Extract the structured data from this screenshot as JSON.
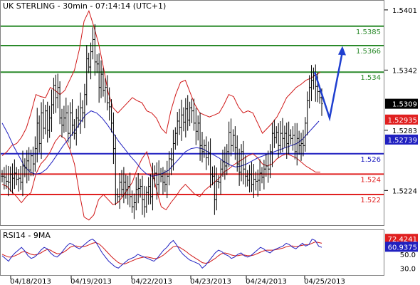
{
  "chart_data": {
    "type": "line",
    "title": "UK STERLING - 30min - 07:14:14 (UTC+1)",
    "price_axis": {
      "ylim": [
        1.519,
        1.541
      ],
      "ticks": [
        "1.5401",
        "1.5342",
        "1.5283",
        "1.5224"
      ]
    },
    "x_labels": [
      "04/18/2013",
      "04/19/2013",
      "04/22/2013",
      "04/23/2013",
      "04/24/2013",
      "04/25/2013"
    ],
    "levels": [
      {
        "label": "1.5385",
        "value": 1.5385,
        "color": "#2a8a2a"
      },
      {
        "label": "1.5366",
        "value": 1.5366,
        "color": "#2a8a2a"
      },
      {
        "label": "1.534",
        "value": 1.534,
        "color": "#2a8a2a"
      },
      {
        "label": "1.526",
        "value": 1.526,
        "color": "#2020c0"
      },
      {
        "label": "1.524",
        "value": 1.524,
        "color": "#e02020"
      },
      {
        "label": "1.522",
        "value": 1.522,
        "color": "#e02020"
      }
    ],
    "price_tags": [
      {
        "label": "1.5309",
        "value": 1.5309,
        "bg": "#000000"
      },
      {
        "label": "1.52935",
        "value": 1.52935,
        "bg": "#e02020"
      },
      {
        "label": "1.52739",
        "value": 1.52739,
        "bg": "#2020c0"
      }
    ],
    "price_series": [
      1.5238,
      1.5237,
      1.5233,
      1.5232,
      1.524,
      1.5236,
      1.5241,
      1.5235,
      1.5236,
      1.5232,
      1.5248,
      1.5246,
      1.5253,
      1.5244,
      1.5258,
      1.525,
      1.5265,
      1.529,
      1.527,
      1.53,
      1.5285,
      1.5302,
      1.5283,
      1.5295,
      1.5308,
      1.5327,
      1.5315,
      1.5325,
      1.5295,
      1.5288,
      1.5295,
      1.53,
      1.528,
      1.53,
      1.5288,
      1.528,
      1.5295,
      1.5293,
      1.5305,
      1.53,
      1.5318,
      1.5353,
      1.5345,
      1.536,
      1.5372,
      1.535,
      1.5348,
      1.5325,
      1.5338,
      1.5322,
      1.5325,
      1.531,
      1.5306,
      1.529,
      1.5265,
      1.522,
      1.5218,
      1.5232,
      1.5225,
      1.5232,
      1.5225,
      1.5228,
      1.5218,
      1.5208,
      1.5212,
      1.5225,
      1.5226,
      1.5228,
      1.5215,
      1.5208,
      1.5222,
      1.5228,
      1.5218,
      1.5236,
      1.5241,
      1.523,
      1.524,
      1.5238,
      1.5232,
      1.523,
      1.5238,
      1.5255,
      1.5254,
      1.527,
      1.528,
      1.5292,
      1.5286,
      1.5298,
      1.5291,
      1.5304,
      1.5293,
      1.5305,
      1.5302,
      1.529,
      1.5282,
      1.529,
      1.5268,
      1.5262,
      1.5268,
      1.5256,
      1.526,
      1.524,
      1.5238,
      1.5215,
      1.5233,
      1.5232,
      1.5245,
      1.5252,
      1.5248,
      1.5262,
      1.5281,
      1.5268,
      1.5278,
      1.5266,
      1.525,
      1.5242,
      1.5262,
      1.5245,
      1.5238,
      1.5234,
      1.524,
      1.523,
      1.5235,
      1.5233,
      1.5234,
      1.5241,
      1.5237,
      1.5245,
      1.5248,
      1.5245,
      1.5262,
      1.528,
      1.5276,
      1.5281,
      1.5268,
      1.528,
      1.5275,
      1.528,
      1.527,
      1.5278,
      1.5275,
      1.5278,
      1.5262,
      1.5275,
      1.5268,
      1.527,
      1.5268,
      1.529,
      1.5312,
      1.5325,
      1.5332,
      1.5337,
      1.5326,
      1.5321,
      1.5315,
      1.5309
    ],
    "bollinger_upper": [
      1.5258,
      1.5262,
      1.5268,
      1.527,
      1.5276,
      1.5285,
      1.53,
      1.5318,
      1.5316,
      1.5315,
      1.5325,
      1.5322,
      1.5318,
      1.5322,
      1.5332,
      1.5342,
      1.5362,
      1.539,
      1.54,
      1.5385,
      1.5368,
      1.5345,
      1.532,
      1.5305,
      1.53,
      1.5305,
      1.531,
      1.5315,
      1.5312,
      1.531,
      1.5302,
      1.53,
      1.5295,
      1.5285,
      1.528,
      1.5302,
      1.5318,
      1.533,
      1.5332,
      1.532,
      1.5308,
      1.53,
      1.5298,
      1.5296,
      1.5298,
      1.53,
      1.5308,
      1.5318,
      1.5316,
      1.5306,
      1.53,
      1.5302,
      1.53,
      1.529,
      1.528,
      1.5285,
      1.529,
      1.5296,
      1.5305,
      1.5315,
      1.532,
      1.5325,
      1.5328,
      1.5332,
      1.5334,
      1.5337,
      1.534
    ],
    "bollinger_lower": [
      1.523,
      1.5228,
      1.5223,
      1.5218,
      1.5212,
      1.5218,
      1.5222,
      1.524,
      1.525,
      1.5255,
      1.5262,
      1.5272,
      1.5278,
      1.5275,
      1.5265,
      1.525,
      1.5222,
      1.5198,
      1.5195,
      1.52,
      1.5215,
      1.522,
      1.5215,
      1.521,
      1.5212,
      1.5218,
      1.5225,
      1.5232,
      1.5245,
      1.5255,
      1.5262,
      1.5245,
      1.5225,
      1.5208,
      1.5205,
      1.5212,
      1.5218,
      1.5225,
      1.523,
      1.5225,
      1.522,
      1.5218,
      1.5224,
      1.5228,
      1.5232,
      1.5236,
      1.5242,
      1.5245,
      1.5249,
      1.5252,
      1.5255,
      1.5258,
      1.526,
      1.5256,
      1.525,
      1.5248,
      1.525,
      1.5255,
      1.5258,
      1.526,
      1.5258,
      1.5256,
      1.5252,
      1.5248,
      1.5245,
      1.5242,
      1.5242
    ],
    "moving_average": [
      1.529,
      1.528,
      1.5268,
      1.5258,
      1.5248,
      1.5242,
      1.524,
      1.5241,
      1.5245,
      1.5252,
      1.526,
      1.5268,
      1.5275,
      1.5282,
      1.529,
      1.5298,
      1.5302,
      1.53,
      1.5295,
      1.5288,
      1.528,
      1.5272,
      1.5265,
      1.5258,
      1.5252,
      1.5245,
      1.524,
      1.5238,
      1.5239,
      1.5241,
      1.5244,
      1.525,
      1.5256,
      1.5262,
      1.5265,
      1.5266,
      1.5265,
      1.5262,
      1.5259,
      1.5256,
      1.5252,
      1.5249,
      1.5247,
      1.5248,
      1.525,
      1.5253,
      1.5256,
      1.5258,
      1.526,
      1.5262,
      1.5264,
      1.5266,
      1.5268,
      1.527,
      1.5274,
      1.528,
      1.5286,
      1.5292
    ],
    "forecast_arrow": [
      1.534,
      1.5295,
      1.536
    ],
    "rsi_panel": {
      "label": "RSI14 - 9MA",
      "ylim": [
        20,
        85
      ],
      "ticks": [
        "50.0",
        "30.0"
      ],
      "tags": [
        {
          "label": "72.4241",
          "value": 72.4241,
          "bg": "#e02020"
        },
        {
          "label": "60.9375",
          "value": 60.9375,
          "bg": "#2020c0"
        }
      ],
      "rsi": [
        48,
        44,
        40,
        47,
        52,
        56,
        60,
        55,
        48,
        44,
        46,
        50,
        56,
        60,
        58,
        52,
        48,
        46,
        50,
        56,
        62,
        66,
        64,
        60,
        58,
        62,
        66,
        70,
        72,
        68,
        60,
        52,
        46,
        40,
        36,
        32,
        30,
        34,
        38,
        42,
        44,
        46,
        50,
        48,
        46,
        44,
        42,
        40,
        44,
        50,
        56,
        60,
        66,
        70,
        64,
        56,
        50,
        46,
        42,
        40,
        38,
        36,
        30,
        34,
        40,
        46,
        52,
        56,
        54,
        50,
        48,
        44,
        46,
        50,
        52,
        48,
        46,
        48,
        52,
        56,
        60,
        58,
        54,
        52,
        56,
        58,
        60,
        62,
        66,
        64,
        60,
        58,
        62,
        66,
        62,
        64,
        72,
        70,
        62,
        60
      ],
      "ma": [
        50,
        48,
        46,
        46,
        48,
        50,
        53,
        54,
        52,
        50,
        49,
        50,
        52,
        55,
        57,
        56,
        53,
        51,
        51,
        53,
        56,
        60,
        62,
        62,
        61,
        61,
        62,
        64,
        66,
        67,
        65,
        61,
        56,
        51,
        46,
        42,
        38,
        36,
        36,
        38,
        40,
        42,
        44,
        45,
        46,
        46,
        45,
        44,
        44,
        46,
        49,
        53,
        57,
        61,
        62,
        60,
        57,
        54,
        50,
        47,
        44,
        41,
        38,
        37,
        38,
        41,
        44,
        48,
        51,
        52,
        51,
        49,
        48,
        48,
        49,
        49,
        48,
        48,
        49,
        51,
        53,
        55,
        56,
        56,
        56,
        57,
        58,
        59,
        61,
        62,
        62,
        61,
        62,
        63,
        64,
        64,
        66,
        68,
        67,
        66
      ]
    }
  }
}
